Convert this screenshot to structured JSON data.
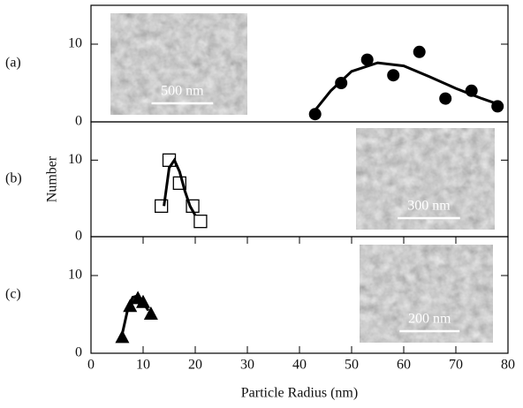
{
  "chart_data": [
    {
      "type": "scatter",
      "panel_label": "(a)",
      "inset_label": "500 nm",
      "ylim": [
        0,
        15
      ],
      "yticks": [
        0,
        10
      ],
      "series": [
        {
          "style": "marker",
          "marker": "circle",
          "color": "#000000",
          "x": [
            43,
            48,
            53,
            58,
            63,
            68,
            73,
            78
          ],
          "values": [
            1,
            5,
            8,
            6,
            9,
            3,
            4,
            2
          ]
        },
        {
          "style": "line",
          "color": "#000000",
          "x": [
            43,
            46,
            50,
            55,
            60,
            65,
            70,
            75,
            78
          ],
          "values": [
            1.5,
            4,
            6.5,
            7.6,
            7.2,
            5.8,
            4.3,
            3.0,
            2.3
          ]
        }
      ]
    },
    {
      "type": "scatter",
      "panel_label": "(b)",
      "inset_label": "300 nm",
      "ylabel": "Number",
      "ylim": [
        0,
        15
      ],
      "yticks": [
        0,
        10
      ],
      "series": [
        {
          "style": "marker",
          "marker": "square",
          "color": "#000000",
          "x": [
            13.5,
            15,
            17,
            19.5,
            21
          ],
          "values": [
            4,
            10,
            7,
            4,
            2
          ]
        },
        {
          "style": "line",
          "color": "#000000",
          "x": [
            14,
            15,
            16,
            17,
            18,
            19,
            20
          ],
          "values": [
            4,
            9,
            10,
            8.5,
            6,
            4,
            2.8
          ]
        }
      ]
    },
    {
      "type": "scatter",
      "panel_label": "(c)",
      "inset_label": "200 nm",
      "xlabel": "Particle Radius (nm)",
      "xlim": [
        0,
        80
      ],
      "xticks": [
        0,
        10,
        20,
        30,
        40,
        50,
        60,
        70,
        80
      ],
      "ylim": [
        0,
        15
      ],
      "yticks": [
        0,
        10
      ],
      "series": [
        {
          "style": "marker",
          "marker": "triangle",
          "color": "#000000",
          "x": [
            6,
            7.5,
            9,
            10,
            11.5
          ],
          "values": [
            2,
            6,
            7,
            6.5,
            5
          ]
        },
        {
          "style": "line",
          "color": "#000000",
          "x": [
            6,
            7,
            8,
            9,
            10,
            11
          ],
          "values": [
            2.5,
            5.5,
            7.2,
            7.4,
            6.5,
            5.5
          ]
        }
      ]
    }
  ]
}
